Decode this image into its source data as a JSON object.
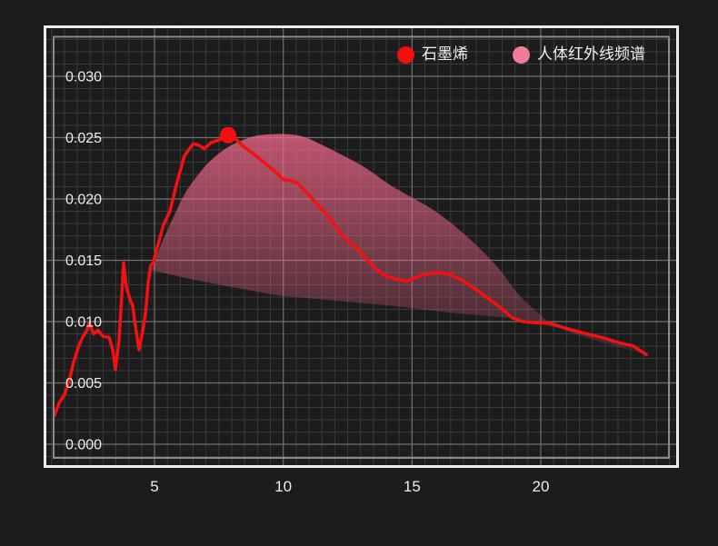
{
  "page": {
    "background": "#1c1c1c"
  },
  "frame": {
    "outer_color": "#ececec",
    "inner_color": "#8a8a8a"
  },
  "legend": {
    "items": [
      {
        "label": "石墨烯",
        "color": "#f40f0f"
      },
      {
        "label": "人体红外线频谱",
        "color": "#f27c97"
      }
    ]
  },
  "chart_data": {
    "type": "line",
    "title": "",
    "xlabel": "",
    "ylabel": "",
    "xlim": [
      1.1,
      25.0
    ],
    "ylim": [
      -0.0011,
      0.0333
    ],
    "x_ticks": [
      "5",
      "10",
      "15",
      "20"
    ],
    "y_ticks": [
      "0.000",
      "0.005",
      "0.010",
      "0.015",
      "0.020",
      "0.025",
      "0.030"
    ],
    "grid": {
      "on": true,
      "minor_x_step": 0.5,
      "minor_y_step": 0.001,
      "major_x_ticks": [
        5,
        10,
        15,
        20
      ],
      "major_y_ticks": [
        0,
        0.005,
        0.01,
        0.015,
        0.02,
        0.025,
        0.03
      ],
      "minor_color": "#3a3a3a",
      "major_color": "#6f6f6f"
    },
    "legend_position": "top-right-inside",
    "series": [
      {
        "name": "石墨烯",
        "type": "line",
        "color": "#f31111",
        "width": 3.5,
        "points": [
          [
            1.1,
            0.0023
          ],
          [
            1.3,
            0.0034
          ],
          [
            1.5,
            0.004
          ],
          [
            1.7,
            0.0053
          ],
          [
            1.86,
            0.0067
          ],
          [
            2.04,
            0.0079
          ],
          [
            2.2,
            0.0087
          ],
          [
            2.38,
            0.0093
          ],
          [
            2.46,
            0.0099
          ],
          [
            2.64,
            0.009
          ],
          [
            2.8,
            0.0093
          ],
          [
            3.0,
            0.0088
          ],
          [
            3.24,
            0.0087
          ],
          [
            3.38,
            0.0077
          ],
          [
            3.48,
            0.0061
          ],
          [
            3.62,
            0.0084
          ],
          [
            3.72,
            0.0118
          ],
          [
            3.8,
            0.0148
          ],
          [
            3.9,
            0.0129
          ],
          [
            4.05,
            0.0118
          ],
          [
            4.15,
            0.0113
          ],
          [
            4.26,
            0.0096
          ],
          [
            4.4,
            0.0077
          ],
          [
            4.54,
            0.0092
          ],
          [
            4.65,
            0.0107
          ],
          [
            4.76,
            0.0133
          ],
          [
            4.86,
            0.0146
          ],
          [
            4.95,
            0.0148
          ],
          [
            5.1,
            0.016
          ],
          [
            5.35,
            0.0179
          ],
          [
            5.6,
            0.019
          ],
          [
            5.88,
            0.0214
          ],
          [
            6.16,
            0.0235
          ],
          [
            6.5,
            0.0245
          ],
          [
            6.7,
            0.0244
          ],
          [
            6.94,
            0.0241
          ],
          [
            7.2,
            0.0246
          ],
          [
            7.5,
            0.0248
          ],
          [
            7.86,
            0.0252
          ],
          [
            8.2,
            0.0248
          ],
          [
            8.5,
            0.0242
          ],
          [
            8.9,
            0.0236
          ],
          [
            9.3,
            0.0229
          ],
          [
            9.7,
            0.0222
          ],
          [
            10.0,
            0.0216
          ],
          [
            10.3,
            0.0215
          ],
          [
            10.55,
            0.0213
          ],
          [
            11.1,
            0.0201
          ],
          [
            11.7,
            0.0187
          ],
          [
            12.3,
            0.017
          ],
          [
            12.9,
            0.0159
          ],
          [
            13.5,
            0.0145
          ],
          [
            13.9,
            0.0138
          ],
          [
            14.3,
            0.0135
          ],
          [
            14.8,
            0.0133
          ],
          [
            15.4,
            0.0138
          ],
          [
            16.0,
            0.014
          ],
          [
            16.4,
            0.0139
          ],
          [
            17.0,
            0.0133
          ],
          [
            17.7,
            0.0123
          ],
          [
            18.4,
            0.0112
          ],
          [
            18.9,
            0.0103
          ],
          [
            19.3,
            0.01
          ],
          [
            19.8,
            0.0099
          ],
          [
            20.3,
            0.0099
          ],
          [
            20.9,
            0.0095
          ],
          [
            21.6,
            0.0091
          ],
          [
            22.4,
            0.0087
          ],
          [
            23.0,
            0.0083
          ],
          [
            23.6,
            0.008
          ],
          [
            24.1,
            0.0073
          ]
        ],
        "marker": {
          "x": 7.86,
          "y": 0.0252,
          "radius": 9,
          "color": "#f40f0f"
        }
      },
      {
        "name": "人体红外线频谱",
        "type": "band",
        "fill_color": "#f2678a",
        "fill_opacity_top": 0.78,
        "fill_opacity_bottom": 0.02,
        "upper": [
          [
            4.9,
            0.0142
          ],
          [
            5.2,
            0.016
          ],
          [
            5.6,
            0.0179
          ],
          [
            6.2,
            0.0205
          ],
          [
            6.9,
            0.0225
          ],
          [
            7.5,
            0.0237
          ],
          [
            8.0,
            0.0244
          ],
          [
            8.55,
            0.0249
          ],
          [
            9.1,
            0.0252
          ],
          [
            9.9,
            0.0253
          ],
          [
            10.5,
            0.0252
          ],
          [
            11.0,
            0.0249
          ],
          [
            11.7,
            0.0242
          ],
          [
            12.9,
            0.0229
          ],
          [
            13.5,
            0.0221
          ],
          [
            14.1,
            0.0212
          ],
          [
            14.75,
            0.0204
          ],
          [
            15.9,
            0.019
          ],
          [
            17.1,
            0.017
          ],
          [
            18.3,
            0.0145
          ],
          [
            19.1,
            0.0123
          ],
          [
            19.85,
            0.0108
          ],
          [
            20.5,
            0.0097
          ],
          [
            21.6,
            0.0088
          ],
          [
            22.9,
            0.008
          ],
          [
            24.1,
            0.0074
          ]
        ],
        "lower": [
          [
            4.9,
            0.0142
          ],
          [
            6.1,
            0.0136
          ],
          [
            7.8,
            0.0129
          ],
          [
            9.9,
            0.0121
          ],
          [
            12.1,
            0.0117
          ],
          [
            14.2,
            0.0113
          ],
          [
            16.6,
            0.0107
          ],
          [
            18.8,
            0.0103
          ],
          [
            20.9,
            0.0094
          ],
          [
            22.4,
            0.0086
          ],
          [
            24.1,
            0.0074
          ]
        ]
      }
    ]
  }
}
